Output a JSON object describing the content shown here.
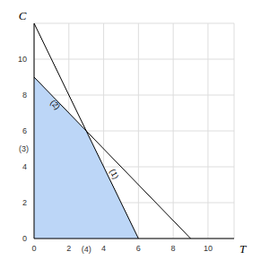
{
  "chart_data": {
    "type": "line",
    "x_label": "T",
    "y_label": "C",
    "xlim": [
      0,
      11.5
    ],
    "ylim": [
      0,
      12
    ],
    "xticks": [
      0,
      2,
      4,
      6,
      8,
      10
    ],
    "yticks": [
      0,
      2,
      4,
      6,
      8,
      10
    ],
    "grid": true,
    "series": [
      {
        "name": "(1)",
        "color": "#000000",
        "x": [
          0,
          6
        ],
        "values": [
          12,
          0
        ]
      },
      {
        "name": "(2)",
        "color": "#000000",
        "x": [
          0,
          9
        ],
        "values": [
          9,
          0
        ]
      }
    ],
    "feasible_region": {
      "color": "#bcd6f7",
      "x": [
        0,
        3,
        6
      ],
      "values": [
        9,
        6,
        0
      ]
    },
    "annotations": [
      {
        "text": "(3)",
        "x": 0,
        "y": 5
      },
      {
        "text": "(4)",
        "x": 3,
        "y": 0
      }
    ]
  }
}
